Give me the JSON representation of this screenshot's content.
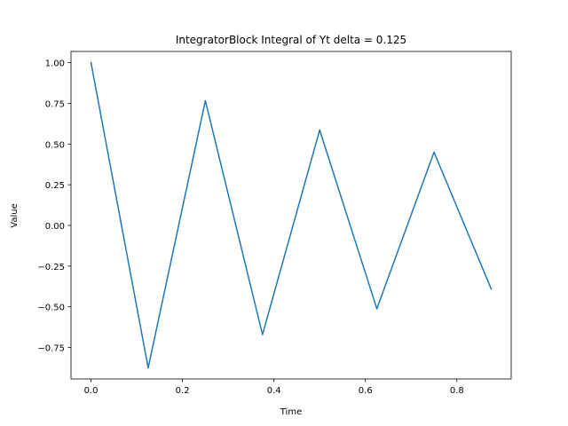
{
  "chart_data": {
    "type": "line",
    "title": "IntegratorBlock Integral of Yt delta = 0.125",
    "xlabel": "Time",
    "ylabel": "Value",
    "xlim": [
      -0.04375,
      0.91875
    ],
    "ylim": [
      -0.9433,
      1.0686
    ],
    "xticks": [
      0.0,
      0.2,
      0.4,
      0.6,
      0.8
    ],
    "xtick_labels": [
      "0.0",
      "0.2",
      "0.4",
      "0.6",
      "0.8"
    ],
    "yticks": [
      1.0,
      0.75,
      0.5,
      0.25,
      0.0,
      -0.25,
      -0.5,
      -0.75
    ],
    "ytick_labels": [
      "1.00",
      "0.75",
      "0.50",
      "0.25",
      "0.00",
      "−0.25",
      "−0.50",
      "−0.75"
    ],
    "grid": false,
    "series": [
      {
        "color": "#1f77b4",
        "x": [
          0.0,
          0.125,
          0.25,
          0.375,
          0.5,
          0.625,
          0.75,
          0.875
        ],
        "y": [
          1.0,
          -0.875,
          0.766,
          -0.67,
          0.586,
          -0.512,
          0.45,
          -0.39
        ]
      }
    ]
  }
}
